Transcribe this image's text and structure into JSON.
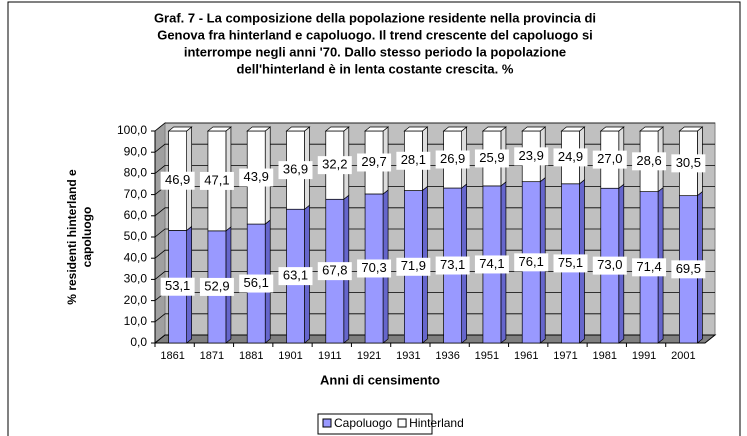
{
  "chart_data": {
    "type": "bar",
    "stacked": true,
    "title": [
      "Graf. 7 - La composizione della popolazione residente nella provincia di",
      "Genova fra hinterland e capoluogo. Il trend crescente del capoluogo si",
      "interrompe negli anni '70. Dallo stesso periodo la popolazione",
      "dell'hinterland è in lenta costante crescita. %"
    ],
    "y_label": [
      "% residenti hinterland e",
      "capoluogo"
    ],
    "x_label": "Anni di censimento",
    "categories": [
      "1861",
      "1871",
      "1881",
      "1901",
      "1911",
      "1921",
      "1931",
      "1936",
      "1951",
      "1961",
      "1971",
      "1981",
      "1991",
      "2001"
    ],
    "series": [
      {
        "name": "Capoluogo",
        "color": "#9999ff",
        "values": [
          53.1,
          52.9,
          56.1,
          63.1,
          67.8,
          70.3,
          71.9,
          73.1,
          74.1,
          76.1,
          75.1,
          73.0,
          71.4,
          69.5
        ],
        "value_labels": [
          "53,1",
          "52,9",
          "56,1",
          "63,1",
          "67,8",
          "70,3",
          "71,9",
          "73,1",
          "74,1",
          "76,1",
          "75,1",
          "73,0",
          "71,4",
          "69,5"
        ]
      },
      {
        "name": "Hinterland",
        "color": "#ffffff",
        "values": [
          46.9,
          47.1,
          43.9,
          36.9,
          32.2,
          29.7,
          28.1,
          26.9,
          25.9,
          23.9,
          24.9,
          27.0,
          28.6,
          30.5
        ],
        "value_labels": [
          "46,9",
          "47,1",
          "43,9",
          "36,9",
          "32,2",
          "29,7",
          "28,1",
          "26,9",
          "25,9",
          "23,9",
          "24,9",
          "27,0",
          "28,6",
          "30,5"
        ]
      }
    ],
    "ylim": [
      0,
      100
    ],
    "yticks": [
      {
        "value": 0,
        "label": "0,0"
      },
      {
        "value": 10,
        "label": "10,0"
      },
      {
        "value": 20,
        "label": "20,0"
      },
      {
        "value": 30,
        "label": "30,0"
      },
      {
        "value": 40,
        "label": "40,0"
      },
      {
        "value": 50,
        "label": "50,0"
      },
      {
        "value": 60,
        "label": "60,0"
      },
      {
        "value": 70,
        "label": "70,0"
      },
      {
        "value": 80,
        "label": "80,0"
      },
      {
        "value": 90,
        "label": "90,0"
      },
      {
        "value": 100,
        "label": "100,0"
      }
    ],
    "grid": true,
    "legend": "bottom"
  }
}
